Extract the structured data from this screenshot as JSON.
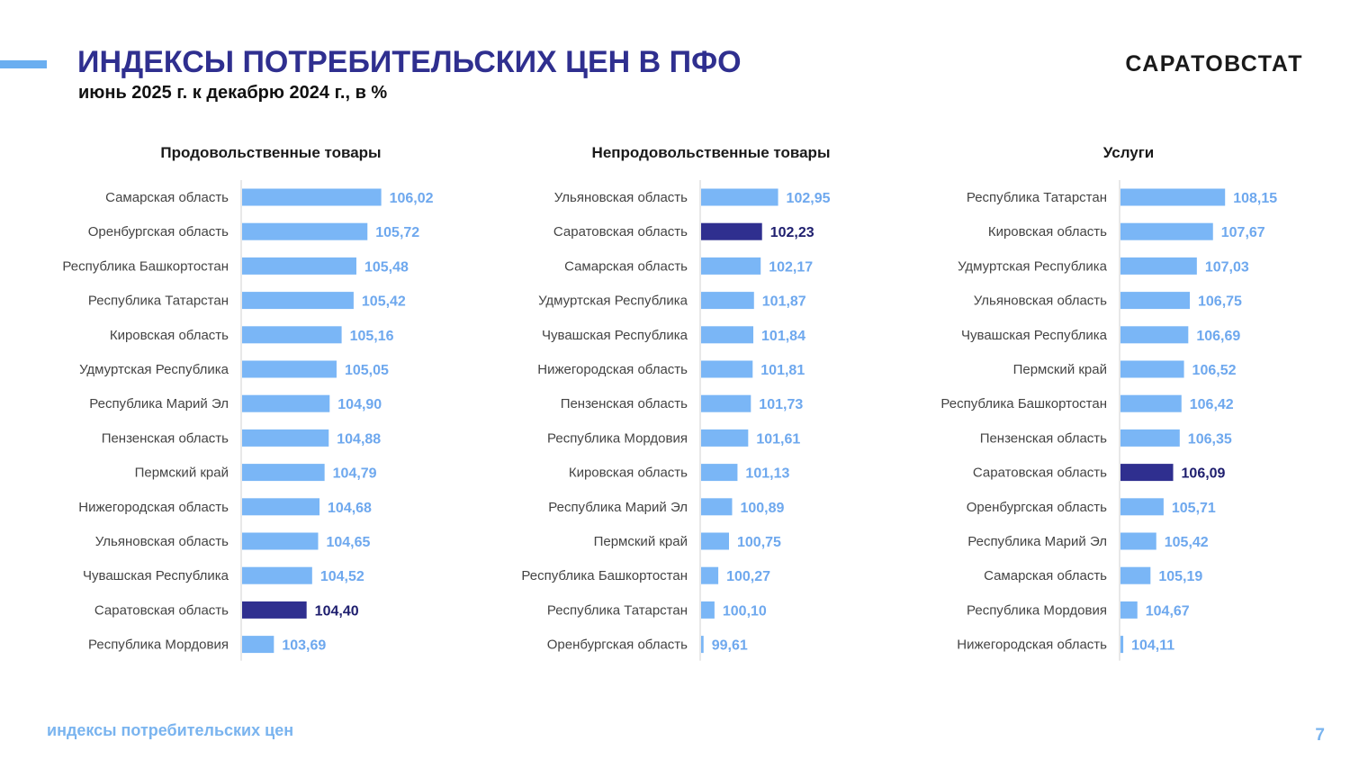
{
  "header": {
    "title": "ИНДЕКСЫ ПОТРЕБИТЕЛЬСКИХ ЦЕН В ПФО",
    "subtitle": "июнь 2025 г. к декабрю 2024 г., в %",
    "brand": "САРАТОВСТАТ"
  },
  "footer": {
    "text": "индексы потребительских цен",
    "page_number": "7"
  },
  "colors": {
    "bar": "#7ab6f6",
    "highlight_bar": "#2f2f8f",
    "bar_label": "#6ea8ee",
    "highlight_label": "#1e1e6e",
    "category_label": "#444444"
  },
  "chart_data": [
    {
      "type": "bar",
      "orientation": "horizontal",
      "title": "Продовольственные товары",
      "highlight": "Саратовская область",
      "categories": [
        "Самарская область",
        "Оренбургская область",
        "Республика Башкортостан",
        "Республика Татарстан",
        "Кировская область",
        "Удмуртская Республика",
        "Республика Марий Эл",
        "Пензенская область",
        "Пермский край",
        "Нижегородская область",
        "Ульяновская область",
        "Чувашская Республика",
        "Саратовская область",
        "Республика Мордовия"
      ],
      "values": [
        106.02,
        105.72,
        105.48,
        105.42,
        105.16,
        105.05,
        104.9,
        104.88,
        104.79,
        104.68,
        104.65,
        104.52,
        104.4,
        103.69
      ],
      "labels": [
        "106,02",
        "105,72",
        "105,48",
        "105,42",
        "105,16",
        "105,05",
        "104,90",
        "104,88",
        "104,79",
        "104,68",
        "104,65",
        "104,52",
        "104,40",
        "103,69"
      ]
    },
    {
      "type": "bar",
      "orientation": "horizontal",
      "title": "Непродовольственные товары",
      "highlight": "Саратовская область",
      "categories": [
        "Ульяновская область",
        "Саратовская область",
        "Самарская область",
        "Удмуртская Республика",
        "Чувашская Республика",
        "Нижегородская область",
        "Пензенская область",
        "Республика Мордовия",
        "Кировская область",
        "Республика Марий Эл",
        "Пермский край",
        "Республика Башкортостан",
        "Республика Татарстан",
        "Оренбургская область"
      ],
      "values": [
        102.95,
        102.23,
        102.17,
        101.87,
        101.84,
        101.81,
        101.73,
        101.61,
        101.13,
        100.89,
        100.75,
        100.27,
        100.1,
        99.61
      ],
      "labels": [
        "102,95",
        "102,23",
        "102,17",
        "101,87",
        "101,84",
        "101,81",
        "101,73",
        "101,61",
        "101,13",
        "100,89",
        "100,75",
        "100,27",
        "100,10",
        "99,61"
      ]
    },
    {
      "type": "bar",
      "orientation": "horizontal",
      "title": "Услуги",
      "highlight": "Саратовская область",
      "categories": [
        "Республика Татарстан",
        "Кировская область",
        "Удмуртская Республика",
        "Ульяновская область",
        "Чувашская Республика",
        "Пермский край",
        "Республика Башкортостан",
        "Пензенская область",
        "Саратовская область",
        "Оренбургская область",
        "Республика Марий Эл",
        "Самарская область",
        "Республика Мордовия",
        "Нижегородская область"
      ],
      "values": [
        108.15,
        107.67,
        107.03,
        106.75,
        106.69,
        106.52,
        106.42,
        106.35,
        106.09,
        105.71,
        105.42,
        105.19,
        104.67,
        104.11
      ],
      "labels": [
        "108,15",
        "107,67",
        "107,03",
        "106,75",
        "106,69",
        "106,52",
        "106,42",
        "106,35",
        "106,09",
        "105,71",
        "105,42",
        "105,19",
        "104,67",
        "104,11"
      ]
    }
  ]
}
